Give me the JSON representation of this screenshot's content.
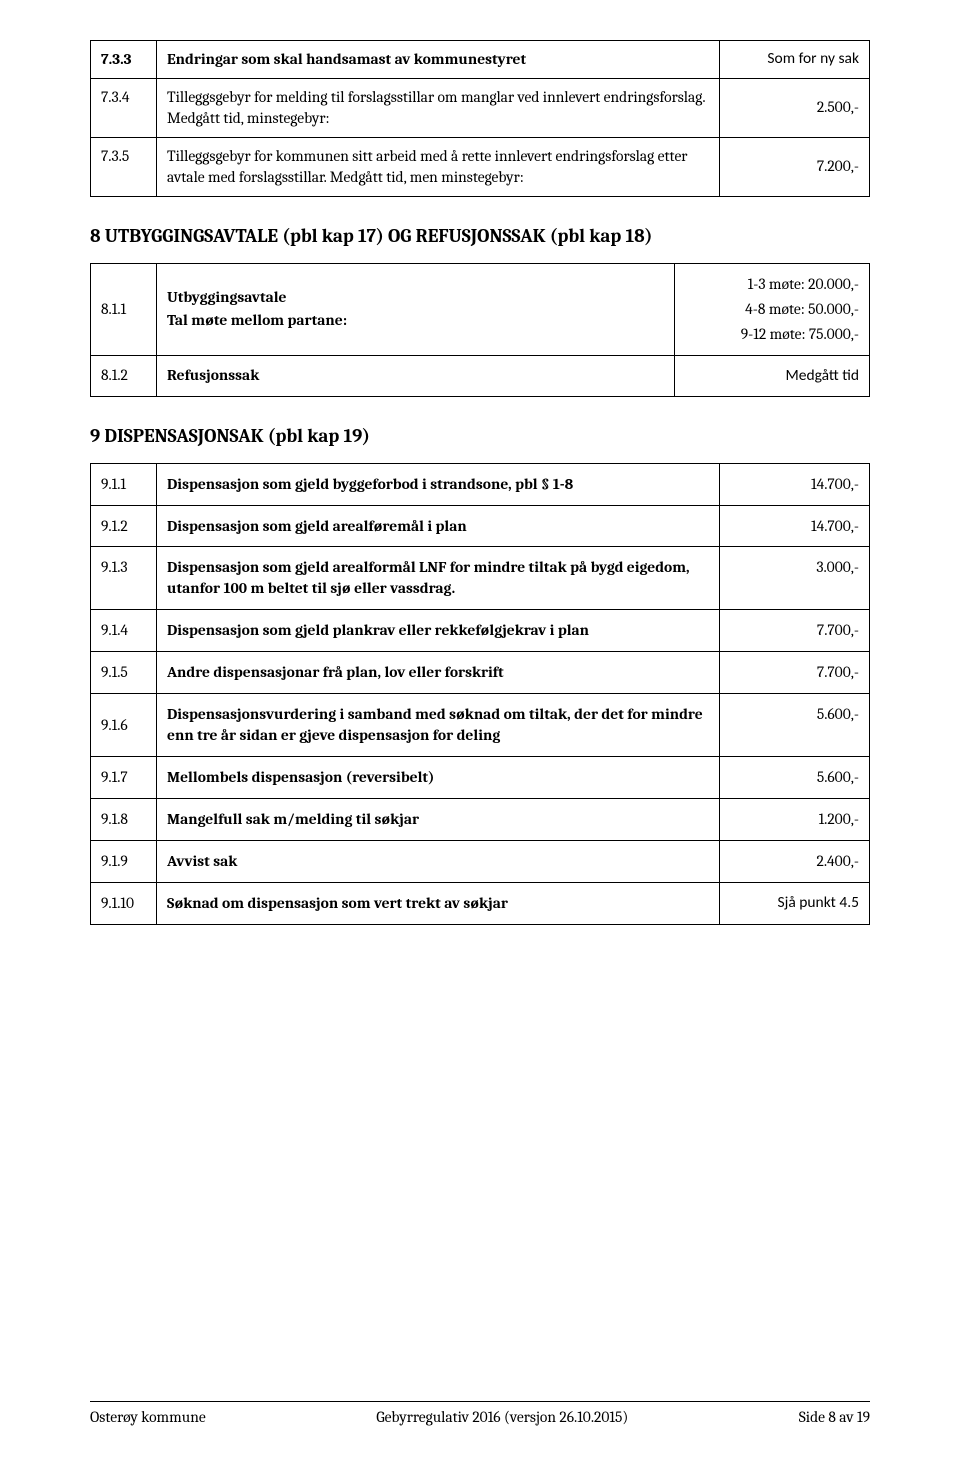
{
  "colors": {
    "text": "#000000",
    "border": "#000000",
    "background": "#ffffff"
  },
  "typography": {
    "font_family": "Cambria, Georgia, serif",
    "body_size_pt": 12,
    "heading_size_pt": 14
  },
  "tableA": {
    "rows": [
      {
        "num": "7.3.3",
        "desc_bold": "Endringar som skal handsamast av kommunestyret",
        "desc_plain": "",
        "value": "Som for ny sak"
      },
      {
        "num": "7.3.4",
        "desc_bold": "",
        "desc_plain": "Tilleggsgebyr for melding til forslagsstillar om manglar ved innlevert endringsforslag. Medgått tid, minstegebyr:",
        "value": "2.500,-"
      },
      {
        "num": "7.3.5",
        "desc_bold": "",
        "desc_plain": "Tilleggsgebyr for kommunen sitt arbeid med å rette innlevert endringsforslag etter avtale med forslagsstillar. Medgått tid, men minstegebyr:",
        "value": "7.200,-"
      }
    ]
  },
  "section8": {
    "heading": "8   UTBYGGINGSAVTALE (pbl kap 17) OG REFUSJONSSAK (pbl kap 18)",
    "row1": {
      "num": "8.1.1",
      "desc_l1": "Utbyggingsavtale",
      "desc_l2": "Tal møte mellom partane:",
      "values": [
        "1-3 møte: 20.000,-",
        "4-8 møte: 50.000,-",
        "9-12 møte: 75.000,-"
      ]
    },
    "row2": {
      "num": "8.1.2",
      "desc": "Refusjonssak",
      "value": "Medgått tid"
    }
  },
  "section9": {
    "heading": "9   DISPENSASJONSAK (pbl kap 19)",
    "rows": [
      {
        "num": "9.1.1",
        "desc": "Dispensasjon som gjeld byggeforbod i strandsone, pbl § 1-8",
        "desc2": "",
        "value": "14.700,-"
      },
      {
        "num": "9.1.2",
        "desc": "Dispensasjon som gjeld arealføremål i plan",
        "desc2": "",
        "value": "14.700,-"
      },
      {
        "num": "9.1.3",
        "desc": "Dispensasjon som gjeld arealformål LNF for mindre tiltak på bygd eigedom, utanfor 100 m beltet til sjø eller vassdrag.",
        "desc2": "",
        "value": "3.000,-"
      },
      {
        "num": "9.1.4",
        "desc": "Dispensasjon som gjeld plankrav eller rekkefølgjekrav i plan",
        "desc2": "",
        "value": "7.700,-"
      },
      {
        "num": "9.1.5",
        "desc": "Andre dispensasjonar frå plan, lov eller forskrift",
        "desc2": "",
        "value": "7.700,-"
      },
      {
        "num": "9.1.6",
        "desc": "Dispensasjonsvurdering i samband med søknad om tiltak, der det for mindre enn tre år sidan er gjeve dispensasjon for deling",
        "desc2": "",
        "value": "5.600,-"
      },
      {
        "num": "9.1.7",
        "desc": "Mellombels dispensasjon (reversibelt)",
        "desc2": "",
        "value": "5.600,-"
      },
      {
        "num": "9.1.8",
        "desc": "Mangelfull sak m/melding til søkjar",
        "desc2": "",
        "value": "1.200,-"
      },
      {
        "num": "9.1.9",
        "desc": "Avvist sak",
        "desc2": "",
        "value": "2.400,-"
      },
      {
        "num": "9.1.10",
        "desc": "Søknad om dispensasjon som vert trekt av søkjar",
        "desc2": "",
        "value": "Sjå punkt 4.5"
      }
    ]
  },
  "footer": {
    "left": "Osterøy kommune",
    "center": "Gebyrregulativ 2016 (versjon 26.10.2015)",
    "right": "Side 8 av 19"
  }
}
